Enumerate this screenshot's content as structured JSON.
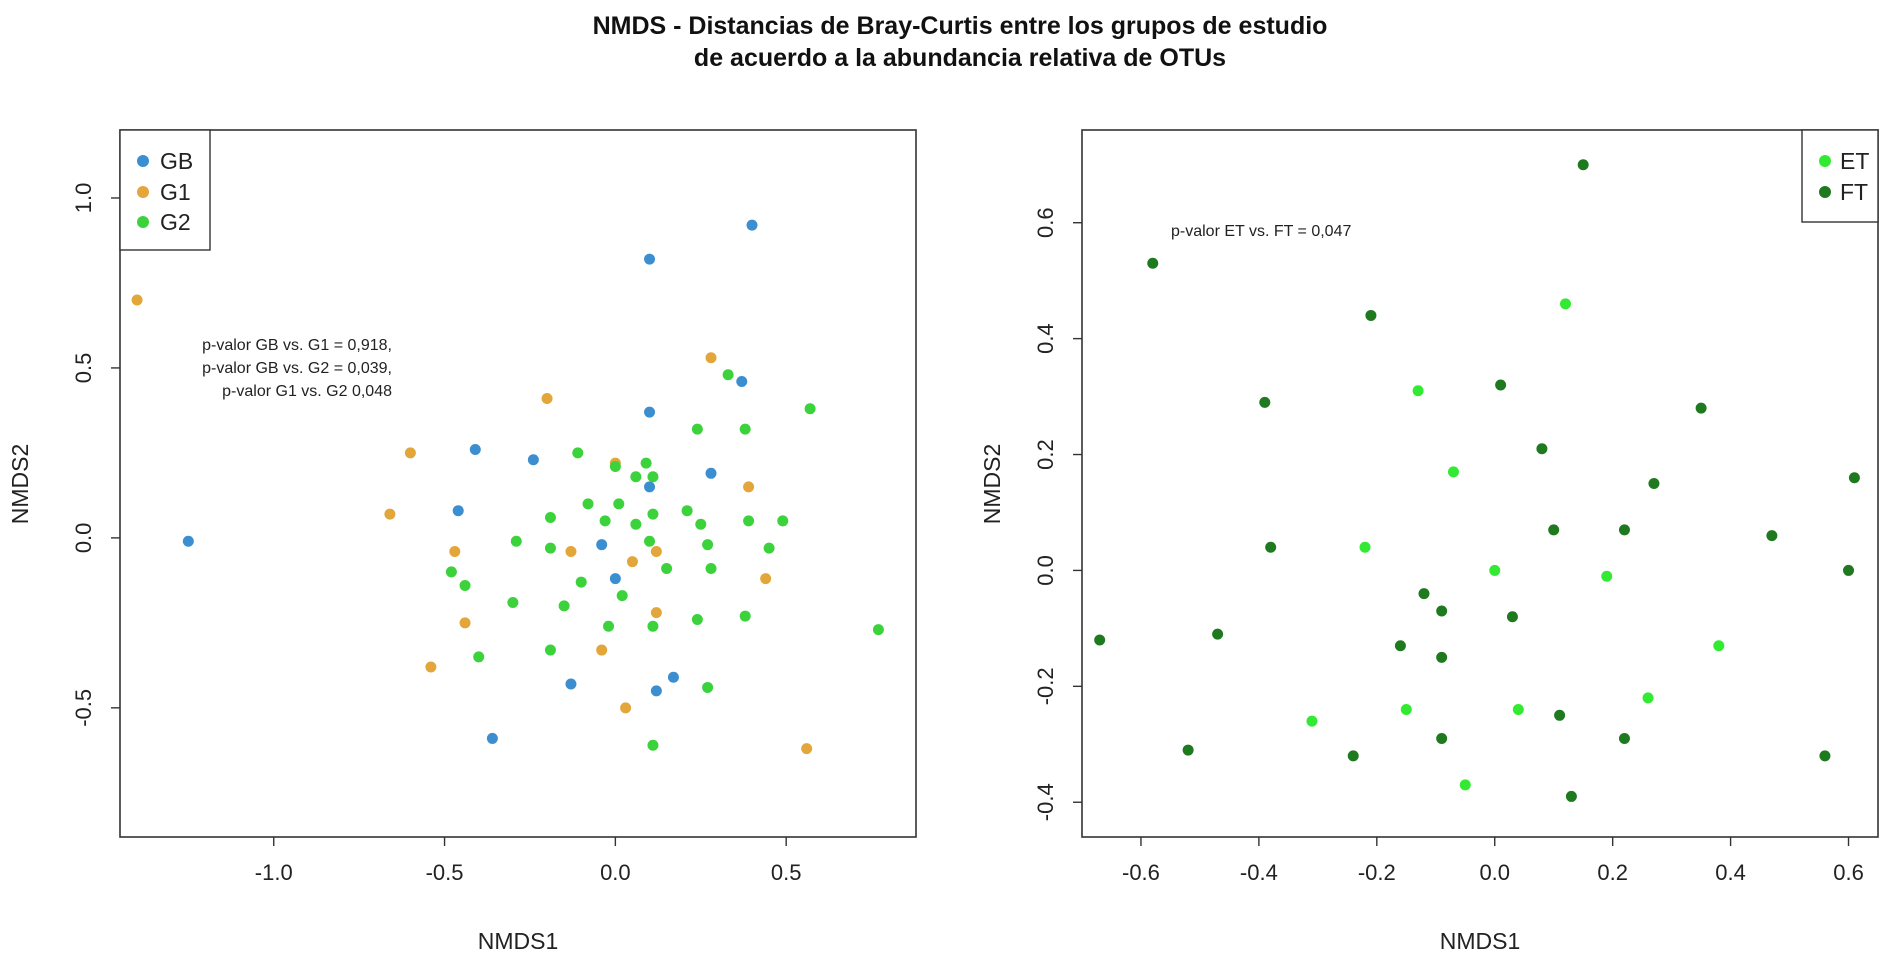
{
  "figure_title": {
    "line1": "NMDS - Distancias de Bray-Curtis entre los grupos de estudio",
    "line2": "de acuerdo a la abundancia relativa de OTUs"
  },
  "chart_data": [
    {
      "type": "scatter",
      "xlabel": "NMDS1",
      "ylabel": "NMDS2",
      "xlim": [
        -1.45,
        0.88
      ],
      "ylim": [
        -0.88,
        1.2
      ],
      "xticks": [
        -1.0,
        -0.5,
        0.0,
        0.5
      ],
      "xtick_labels": [
        "-1.0",
        "-0.5",
        "0.0",
        "0.5"
      ],
      "yticks": [
        -0.5,
        0.0,
        0.5,
        1.0
      ],
      "ytick_labels": [
        "-0.5",
        "0.0",
        "0.5",
        "1.0"
      ],
      "grid": false,
      "legend_position": "top-left",
      "annotations": [
        "p-valor GB vs. G1 = 0,918,",
        "p-valor GB vs. G2 = 0,039,",
        "p-valor G1 vs. G2 0,048"
      ],
      "series": [
        {
          "name": "GB",
          "color": "#3b8fd0",
          "points": [
            [
              -1.25,
              -0.01
            ],
            [
              -0.41,
              0.26
            ],
            [
              -0.46,
              0.08
            ],
            [
              -0.24,
              0.23
            ],
            [
              -0.04,
              -0.02
            ],
            [
              0.0,
              -0.12
            ],
            [
              0.1,
              0.15
            ],
            [
              0.1,
              0.37
            ],
            [
              0.1,
              0.82
            ],
            [
              0.28,
              0.19
            ],
            [
              0.37,
              0.46
            ],
            [
              0.4,
              0.92
            ],
            [
              -0.13,
              -0.43
            ],
            [
              0.12,
              -0.45
            ],
            [
              0.17,
              -0.41
            ],
            [
              -0.36,
              -0.59
            ]
          ]
        },
        {
          "name": "G1",
          "color": "#e2a63a",
          "points": [
            [
              -1.4,
              0.7
            ],
            [
              -0.6,
              0.25
            ],
            [
              -0.66,
              0.07
            ],
            [
              -0.47,
              -0.04
            ],
            [
              -0.44,
              -0.25
            ],
            [
              -0.54,
              -0.38
            ],
            [
              -0.2,
              0.41
            ],
            [
              0.0,
              0.22
            ],
            [
              -0.13,
              -0.04
            ],
            [
              0.05,
              -0.07
            ],
            [
              0.12,
              -0.04
            ],
            [
              -0.04,
              -0.33
            ],
            [
              0.12,
              -0.22
            ],
            [
              0.03,
              -0.5
            ],
            [
              0.28,
              0.53
            ],
            [
              0.39,
              0.15
            ],
            [
              0.44,
              -0.12
            ],
            [
              0.56,
              -0.62
            ]
          ]
        },
        {
          "name": "G2",
          "color": "#3cd23c",
          "points": [
            [
              -0.48,
              -0.1
            ],
            [
              -0.44,
              -0.14
            ],
            [
              -0.4,
              -0.35
            ],
            [
              -0.3,
              -0.19
            ],
            [
              -0.29,
              -0.01
            ],
            [
              -0.19,
              0.06
            ],
            [
              -0.19,
              -0.03
            ],
            [
              -0.19,
              -0.33
            ],
            [
              -0.15,
              -0.2
            ],
            [
              -0.11,
              0.25
            ],
            [
              -0.1,
              -0.13
            ],
            [
              -0.08,
              0.1
            ],
            [
              -0.03,
              0.05
            ],
            [
              0.0,
              0.21
            ],
            [
              0.01,
              0.1
            ],
            [
              0.02,
              -0.17
            ],
            [
              -0.02,
              -0.26
            ],
            [
              0.06,
              0.18
            ],
            [
              0.06,
              0.04
            ],
            [
              0.09,
              0.22
            ],
            [
              0.11,
              0.18
            ],
            [
              0.11,
              0.07
            ],
            [
              0.1,
              -0.01
            ],
            [
              0.11,
              -0.26
            ],
            [
              0.15,
              -0.09
            ],
            [
              0.21,
              0.08
            ],
            [
              0.24,
              -0.24
            ],
            [
              0.24,
              0.32
            ],
            [
              0.25,
              0.04
            ],
            [
              0.27,
              -0.02
            ],
            [
              0.28,
              -0.09
            ],
            [
              0.27,
              -0.44
            ],
            [
              0.33,
              0.48
            ],
            [
              0.38,
              0.32
            ],
            [
              0.39,
              0.05
            ],
            [
              0.38,
              -0.23
            ],
            [
              0.45,
              -0.03
            ],
            [
              0.49,
              0.05
            ],
            [
              0.57,
              0.38
            ],
            [
              0.77,
              -0.27
            ],
            [
              0.11,
              -0.61
            ]
          ]
        }
      ]
    },
    {
      "type": "scatter",
      "xlabel": "NMDS1",
      "ylabel": "NMDS2",
      "xlim": [
        -0.7,
        0.65
      ],
      "ylim": [
        -0.46,
        0.76
      ],
      "xticks": [
        -0.6,
        -0.4,
        -0.2,
        0.0,
        0.2,
        0.4,
        0.6
      ],
      "xtick_labels": [
        "-0.6",
        "-0.4",
        "-0.2",
        "0.0",
        "0.2",
        "0.4",
        "0.6"
      ],
      "yticks": [
        -0.4,
        -0.2,
        0.0,
        0.2,
        0.4,
        0.6
      ],
      "ytick_labels": [
        "-0.4",
        "-0.2",
        "0.0",
        "0.2",
        "0.4",
        "0.6"
      ],
      "grid": false,
      "legend_position": "top-right",
      "annotations": [
        "p-valor ET vs. FT = 0,047"
      ],
      "series": [
        {
          "name": "ET",
          "color": "#33ea33",
          "points": [
            [
              -0.13,
              0.31
            ],
            [
              -0.07,
              0.17
            ],
            [
              -0.22,
              0.04
            ],
            [
              0.0,
              0.0
            ],
            [
              0.12,
              0.46
            ],
            [
              0.19,
              -0.01
            ],
            [
              0.38,
              -0.13
            ],
            [
              0.26,
              -0.22
            ],
            [
              -0.15,
              -0.24
            ],
            [
              -0.31,
              -0.26
            ],
            [
              0.04,
              -0.24
            ],
            [
              -0.05,
              -0.37
            ]
          ]
        },
        {
          "name": "FT",
          "color": "#1f7a1f",
          "points": [
            [
              -0.58,
              0.53
            ],
            [
              -0.21,
              0.44
            ],
            [
              -0.39,
              0.29
            ],
            [
              -0.38,
              0.04
            ],
            [
              0.01,
              0.32
            ],
            [
              0.15,
              0.7
            ],
            [
              0.08,
              0.21
            ],
            [
              0.35,
              0.28
            ],
            [
              0.27,
              0.15
            ],
            [
              0.61,
              0.16
            ],
            [
              0.1,
              0.07
            ],
            [
              0.22,
              0.07
            ],
            [
              0.47,
              0.06
            ],
            [
              0.6,
              0.0
            ],
            [
              -0.67,
              -0.12
            ],
            [
              -0.47,
              -0.11
            ],
            [
              -0.12,
              -0.04
            ],
            [
              -0.09,
              -0.07
            ],
            [
              -0.16,
              -0.13
            ],
            [
              -0.09,
              -0.15
            ],
            [
              0.03,
              -0.08
            ],
            [
              -0.52,
              -0.31
            ],
            [
              -0.24,
              -0.32
            ],
            [
              -0.09,
              -0.29
            ],
            [
              0.11,
              -0.25
            ],
            [
              0.22,
              -0.29
            ],
            [
              0.13,
              -0.39
            ],
            [
              0.56,
              -0.32
            ]
          ]
        }
      ]
    }
  ]
}
